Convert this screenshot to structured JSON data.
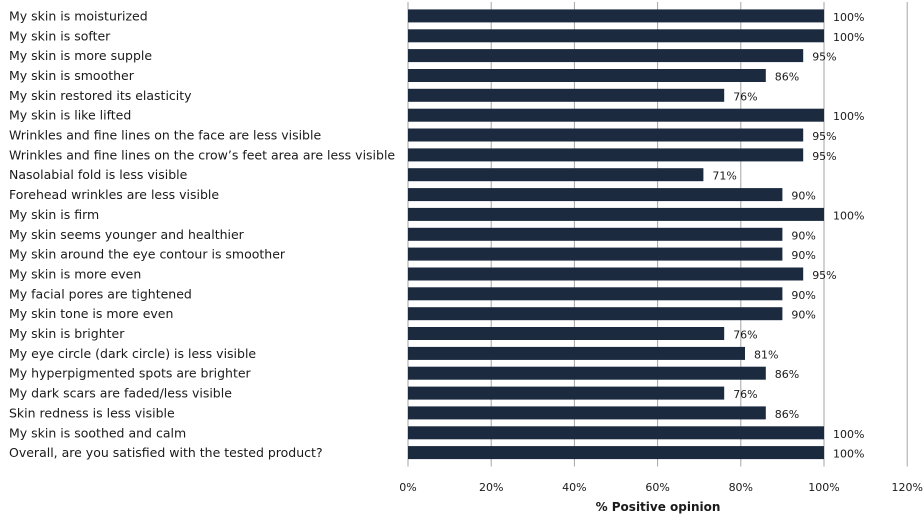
{
  "colors": {
    "bar": "#1b2a3f",
    "gridline": "#a6a6a6",
    "text": "#1a1a1a"
  },
  "chart_data": {
    "type": "bar",
    "orientation": "horizontal",
    "categories": [
      "My skin is moisturized",
      "My skin is softer",
      "My skin is more supple",
      "My skin is smoother",
      "My skin restored its elasticity",
      "My skin is like lifted",
      "Wrinkles and fine lines on the face are less visible",
      "Wrinkles and fine lines on the crow’s feet area are less visible",
      "Nasolabial fold is less visible",
      "Forehead wrinkles are less visible",
      "My skin is firm",
      "My skin seems younger and healthier",
      "My skin around the eye contour is smoother",
      "My skin is more even",
      "My facial pores are tightened",
      "My skin tone is more even",
      "My skin is brighter",
      "My eye circle (dark circle) is less visible",
      "My hyperpigmented spots are brighter",
      "My dark scars are faded/less visible",
      "Skin redness is less visible",
      "My skin is soothed and calm",
      "Overall, are you satisfied with the tested product?"
    ],
    "values": [
      100,
      100,
      95,
      86,
      76,
      100,
      95,
      95,
      71,
      90,
      100,
      90,
      90,
      95,
      90,
      90,
      76,
      81,
      86,
      76,
      86,
      100,
      100
    ],
    "value_labels": [
      "100%",
      "100%",
      "95%",
      "86%",
      "76%",
      "100%",
      "95%",
      "95%",
      "71%",
      "90%",
      "100%",
      "90%",
      "90%",
      "95%",
      "90%",
      "90%",
      "76%",
      "81%",
      "86%",
      "76%",
      "86%",
      "100%",
      "100%"
    ],
    "xlim": [
      0,
      120
    ],
    "xticks": [
      0,
      20,
      40,
      60,
      80,
      100,
      120
    ],
    "xtick_labels": [
      "0%",
      "20%",
      "40%",
      "60%",
      "80%",
      "100%",
      "120%"
    ],
    "xlabel": "% Positive opinion",
    "ylabel": "",
    "title": "",
    "grid": "vertical major gridlines",
    "legend": "none"
  }
}
